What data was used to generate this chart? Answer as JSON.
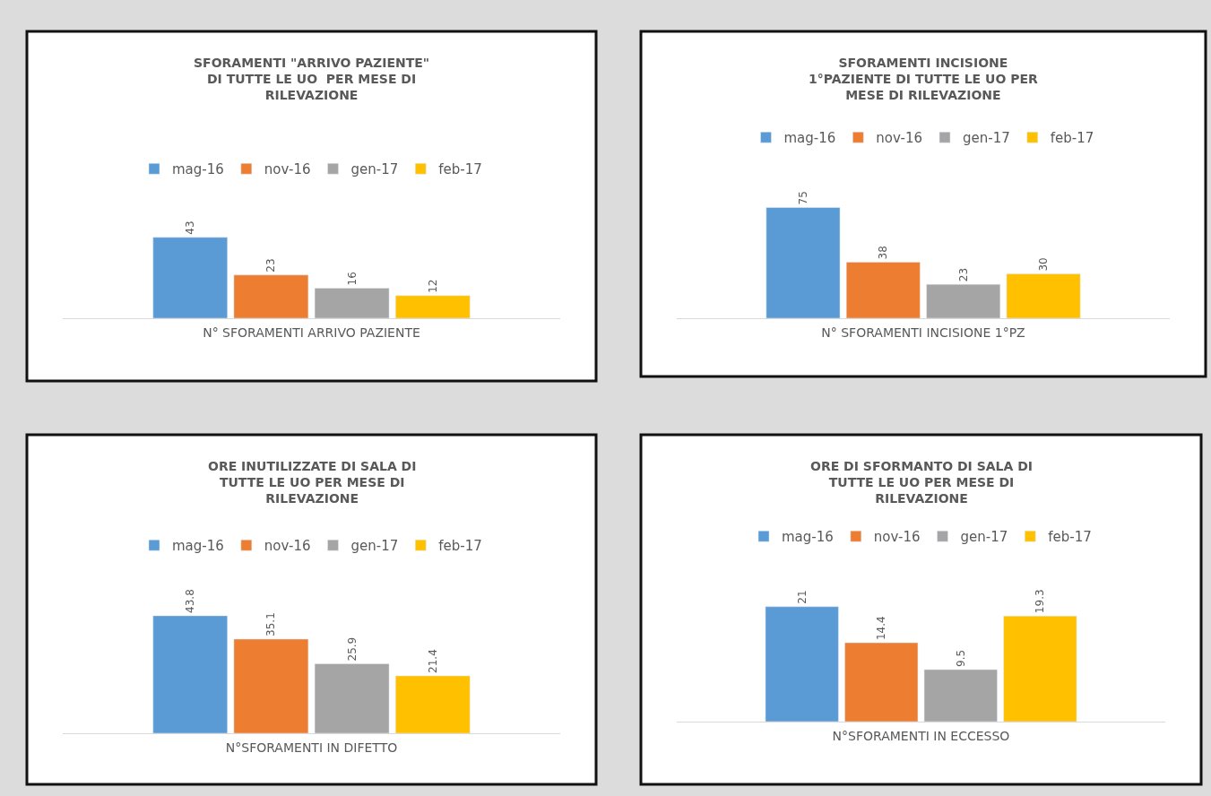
{
  "chart_data": [
    {
      "type": "bar",
      "title": "SFORAMENTI \"ARRIVO PAZIENTE\" DI TUTTE LE UO  PER MESE DI RILEVAZIONE",
      "xlabel": "N° SFORAMENTI ARRIVO PAZIENTE",
      "categories": [
        null
      ],
      "legend": "top",
      "data_labels": true,
      "grid": false,
      "series": [
        {
          "name": "mag-16",
          "color": "#5b9bd5",
          "values": [
            43
          ]
        },
        {
          "name": "nov-16",
          "color": "#ed7d31",
          "values": [
            23
          ]
        },
        {
          "name": "gen-17",
          "color": "#a5a5a5",
          "values": [
            16
          ]
        },
        {
          "name": "feb-17",
          "color": "#ffc000",
          "values": [
            12
          ]
        }
      ]
    },
    {
      "type": "bar",
      "title": "SFORAMENTI INCISIONE 1°PAZIENTE DI TUTTE LE UO PER MESE DI RILEVAZIONE",
      "xlabel": "N° SFORAMENTI INCISIONE 1°PZ",
      "categories": [
        null
      ],
      "legend": "top",
      "data_labels": true,
      "grid": false,
      "series": [
        {
          "name": "mag-16",
          "color": "#5b9bd5",
          "values": [
            75
          ]
        },
        {
          "name": "nov-16",
          "color": "#ed7d31",
          "values": [
            38
          ]
        },
        {
          "name": "gen-17",
          "color": "#a5a5a5",
          "values": [
            23
          ]
        },
        {
          "name": "feb-17",
          "color": "#ffc000",
          "values": [
            30
          ]
        }
      ]
    },
    {
      "type": "bar",
      "title": "ORE INUTILIZZATE DI SALA DI TUTTE LE UO PER MESE DI RILEVAZIONE",
      "xlabel": "N°SFORAMENTI IN DIFETTO",
      "categories": [
        null
      ],
      "legend": "top",
      "data_labels": true,
      "grid": false,
      "series": [
        {
          "name": "mag-16",
          "color": "#5b9bd5",
          "values": [
            43.8
          ]
        },
        {
          "name": "nov-16",
          "color": "#ed7d31",
          "values": [
            35.1
          ]
        },
        {
          "name": "gen-17",
          "color": "#a5a5a5",
          "values": [
            25.9
          ]
        },
        {
          "name": "feb-17",
          "color": "#ffc000",
          "values": [
            21.4
          ]
        }
      ]
    },
    {
      "type": "bar",
      "title": "ORE DI SFORMANTO DI SALA DI TUTTE LE UO PER MESE DI RILEVAZIONE",
      "xlabel": "N°SFORAMENTI IN ECCESSO",
      "categories": [
        null
      ],
      "legend": "top",
      "data_labels": true,
      "grid": false,
      "series": [
        {
          "name": "mag-16",
          "color": "#5b9bd5",
          "values": [
            21
          ]
        },
        {
          "name": "nov-16",
          "color": "#ed7d31",
          "values": [
            14.4
          ]
        },
        {
          "name": "gen-17",
          "color": "#a5a5a5",
          "values": [
            9.5
          ]
        },
        {
          "name": "feb-17",
          "color": "#ffc000",
          "values": [
            19.3
          ]
        }
      ]
    }
  ]
}
